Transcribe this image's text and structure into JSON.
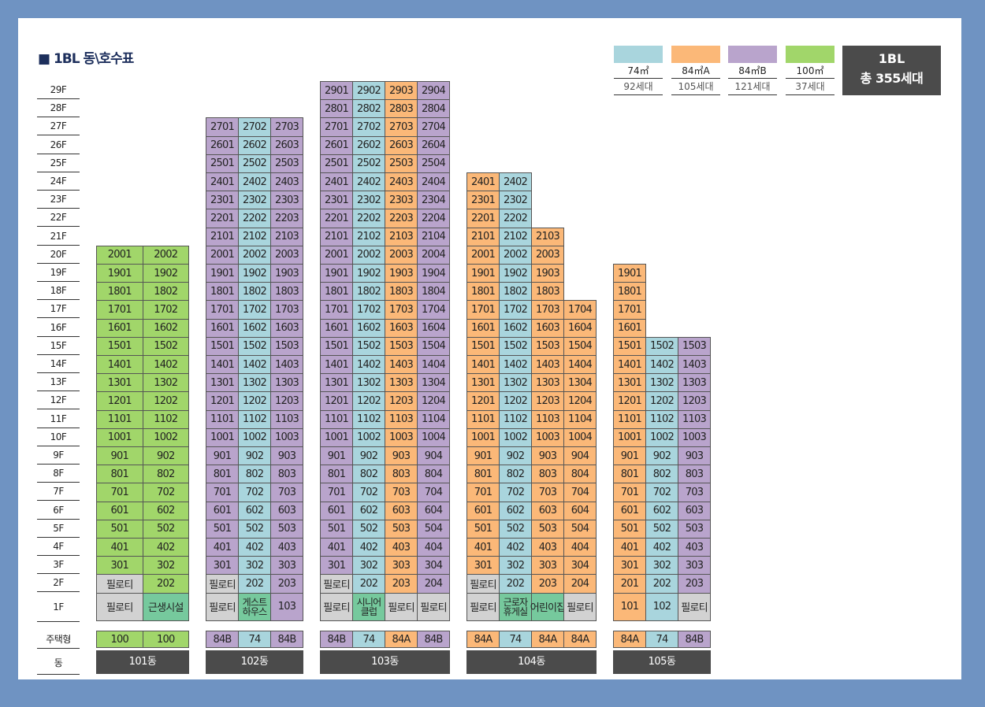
{
  "title": "■ 1BL 동\\호수표",
  "total": {
    "block": "1BL",
    "units": "총 355세대"
  },
  "colors": {
    "74": "#a9d5dd",
    "84A": "#fbb878",
    "84B": "#b9a4cc",
    "100": "#a1d66a",
    "lobby": "#d2d2d2",
    "facility": "#76c99d"
  },
  "legend": [
    {
      "type": "74",
      "area": "74㎡",
      "count": "92세대"
    },
    {
      "type": "84A",
      "area": "84㎡A",
      "count": "105세대"
    },
    {
      "type": "84B",
      "area": "84㎡B",
      "count": "121세대"
    },
    {
      "type": "100",
      "area": "100㎡",
      "count": "37세대"
    }
  ],
  "row_labels": {
    "type": "주택형",
    "dong": "동"
  },
  "buildings": [
    {
      "name": "101동",
      "lines": [
        {
          "type": "100",
          "top": 20,
          "second": {
            "label": "필로티",
            "kind": "lobby"
          },
          "first": {
            "label": "필로티",
            "kind": "lobby"
          }
        },
        {
          "type": "100",
          "top": 20,
          "first": {
            "label": "근생시설",
            "kind": "facility"
          }
        }
      ]
    },
    {
      "name": "102동",
      "lines": [
        {
          "type": "84B",
          "top": 27,
          "second": {
            "label": "필로티",
            "kind": "lobby"
          },
          "first": {
            "label": "필로티",
            "kind": "lobby"
          }
        },
        {
          "type": "74",
          "top": 27,
          "first": {
            "label": "게스트 하우스",
            "kind": "facility"
          }
        },
        {
          "type": "84B",
          "top": 27
        }
      ]
    },
    {
      "name": "103동",
      "lines": [
        {
          "type": "84B",
          "top": 29,
          "second": {
            "label": "필로티",
            "kind": "lobby"
          },
          "first": {
            "label": "필로티",
            "kind": "lobby"
          }
        },
        {
          "type": "74",
          "top": 29,
          "first": {
            "label": "시니어 클럽",
            "kind": "facility"
          }
        },
        {
          "type": "84A",
          "top": 29,
          "first": {
            "label": "필로티",
            "kind": "lobby"
          }
        },
        {
          "type": "84B",
          "top": 29,
          "first": {
            "label": "필로티",
            "kind": "lobby"
          }
        }
      ]
    },
    {
      "name": "104동",
      "lines": [
        {
          "type": "84A",
          "top": 24,
          "second": {
            "label": "필로티",
            "kind": "lobby"
          },
          "first": {
            "label": "필로티",
            "kind": "lobby"
          }
        },
        {
          "type": "74",
          "top": 24,
          "first": {
            "label": "근로자 휴게실",
            "kind": "facility"
          }
        },
        {
          "type": "84A",
          "top": 21,
          "first": {
            "label": "어린이집",
            "kind": "facility"
          }
        },
        {
          "type": "84A",
          "top": 17,
          "first": {
            "label": "필로티",
            "kind": "lobby"
          }
        }
      ]
    },
    {
      "name": "105동",
      "lines": [
        {
          "type": "84A",
          "top": 19
        },
        {
          "type": "74",
          "top": 15
        },
        {
          "type": "84B",
          "top": 15,
          "first": {
            "label": "필로티",
            "kind": "lobby"
          }
        }
      ]
    }
  ]
}
